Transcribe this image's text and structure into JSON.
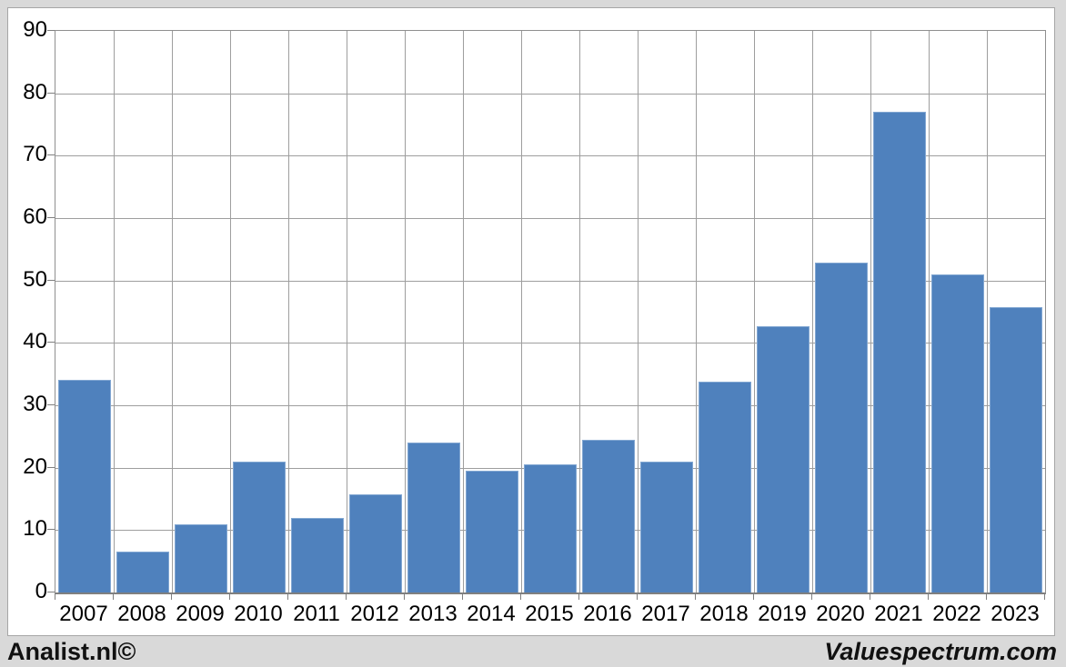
{
  "footer": {
    "left_brand": "Analist.nl©",
    "right_brand": "Valuespectrum.com"
  },
  "colors": {
    "page_background": "#d9d9d9",
    "panel_background": "#ffffff",
    "panel_border": "#a6a6a6",
    "gridline": "#9e9e9e",
    "axis": "#7f7f7f",
    "bar_fill": "#4f81bd",
    "bar_border": "#82a7d2",
    "text": "#000000"
  },
  "chart_data": {
    "type": "bar",
    "title": "",
    "xlabel": "",
    "ylabel": "",
    "categories": [
      "2007",
      "2008",
      "2009",
      "2010",
      "2011",
      "2012",
      "2013",
      "2014",
      "2015",
      "2016",
      "2017",
      "2018",
      "2019",
      "2020",
      "2021",
      "2022",
      "2023"
    ],
    "values": [
      34.1,
      6.6,
      10.9,
      21.0,
      12.0,
      15.7,
      24.0,
      19.5,
      20.6,
      24.4,
      21.0,
      33.8,
      42.6,
      52.8,
      77.0,
      51.0,
      45.7
    ],
    "ylim": [
      0,
      90
    ],
    "yticks": [
      0,
      10,
      20,
      30,
      40,
      50,
      60,
      70,
      80,
      90
    ],
    "grid": true,
    "legend": "none"
  }
}
